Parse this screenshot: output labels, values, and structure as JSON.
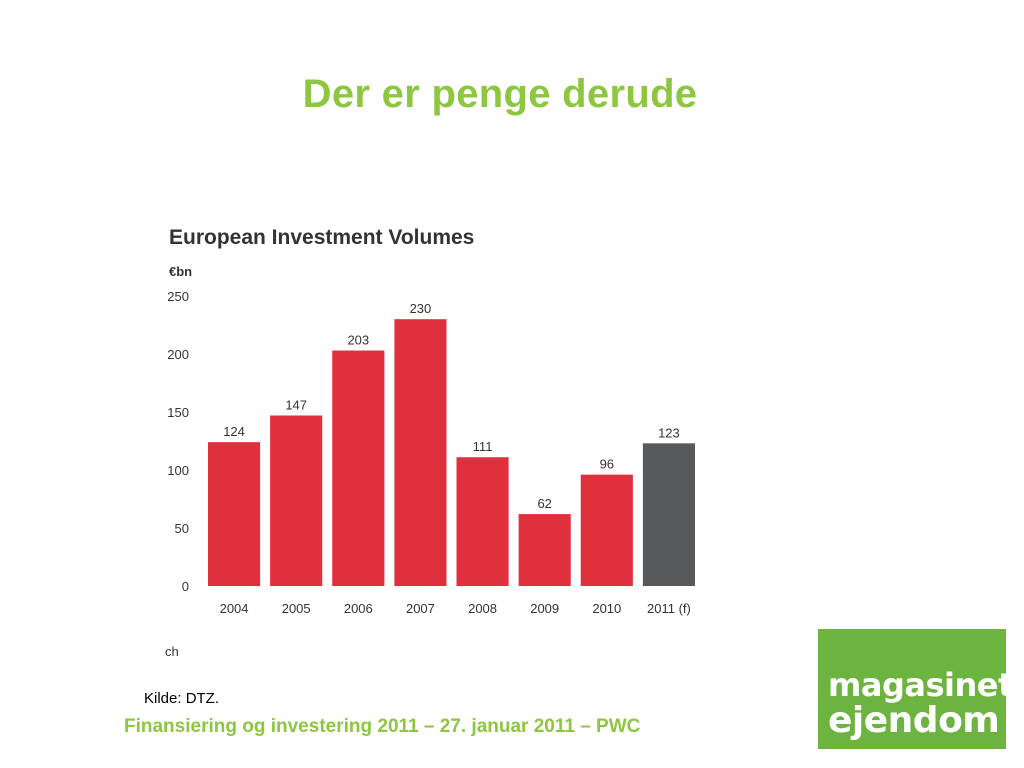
{
  "slide": {
    "title": "Der er penge derude",
    "source": "Kilde: DTZ.",
    "footer": "Finansiering og investering 2011 – 27. januar 2011 – PWC",
    "cut_text": "ch"
  },
  "logo": {
    "line1": "magasinet",
    "line2": "ejendom",
    "color": "#6db33f"
  },
  "colors": {
    "title": "#8dc63f",
    "bar_actual": "#e0303d",
    "bar_forecast": "#58595b",
    "text": "#333333"
  },
  "chart_data": {
    "type": "bar",
    "title": "European Investment Volumes",
    "ylabel": "€bn",
    "xlabel": "",
    "categories": [
      "2004",
      "2005",
      "2006",
      "2007",
      "2008",
      "2009",
      "2010",
      "2011 (f)"
    ],
    "values": [
      124,
      147,
      203,
      230,
      111,
      62,
      96,
      123
    ],
    "forecast": [
      false,
      false,
      false,
      false,
      false,
      false,
      false,
      true
    ],
    "ylim": [
      0,
      250
    ],
    "yticks": [
      0,
      50,
      100,
      150,
      200,
      250
    ],
    "grid": false,
    "legend": "none"
  }
}
